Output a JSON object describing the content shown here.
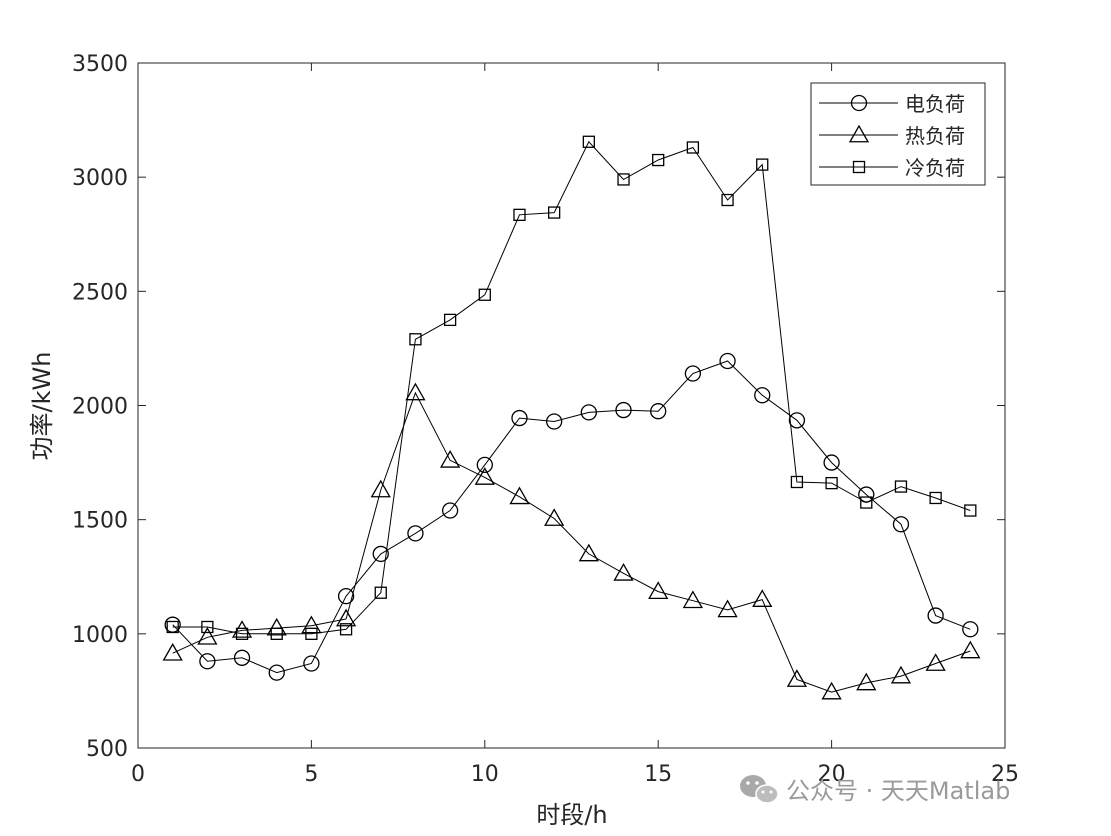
{
  "chart_data": {
    "type": "line",
    "xlabel": "时段/h",
    "ylabel": "功率/kWh",
    "xlim": [
      0,
      25
    ],
    "ylim": [
      500,
      3500
    ],
    "xticks": [
      0,
      5,
      10,
      15,
      20,
      25
    ],
    "yticks": [
      500,
      1000,
      1500,
      2000,
      2500,
      3000,
      3500
    ],
    "grid": false,
    "legend_position": "top-right",
    "x": [
      1,
      2,
      3,
      4,
      5,
      6,
      7,
      8,
      9,
      10,
      11,
      12,
      13,
      14,
      15,
      16,
      17,
      18,
      19,
      20,
      21,
      22,
      23,
      24
    ],
    "series": [
      {
        "name": "电负荷",
        "marker": "circle",
        "color": "#000000",
        "values": [
          1040,
          880,
          895,
          830,
          870,
          1165,
          1350,
          1440,
          1540,
          1740,
          1945,
          1930,
          1970,
          1980,
          1975,
          2140,
          2195,
          2045,
          1935,
          1750,
          1610,
          1480,
          1080,
          1020
        ]
      },
      {
        "name": "热负荷",
        "marker": "triangle",
        "color": "#000000",
        "values": [
          915,
          985,
          1015,
          1025,
          1035,
          1065,
          1630,
          2055,
          1760,
          1685,
          1600,
          1505,
          1350,
          1265,
          1185,
          1145,
          1105,
          1150,
          800,
          745,
          785,
          815,
          870,
          925
        ]
      },
      {
        "name": "冷负荷",
        "marker": "square",
        "color": "#000000",
        "values": [
          1030,
          1030,
          1000,
          1000,
          1000,
          1020,
          1180,
          2290,
          2375,
          2485,
          2835,
          2845,
          3155,
          2990,
          3075,
          3130,
          2900,
          3055,
          1665,
          1660,
          1575,
          1645,
          1595,
          1540
        ]
      }
    ]
  },
  "watermark": {
    "icon": "wechat-icon",
    "text": "公众号 · 天天Matlab"
  }
}
